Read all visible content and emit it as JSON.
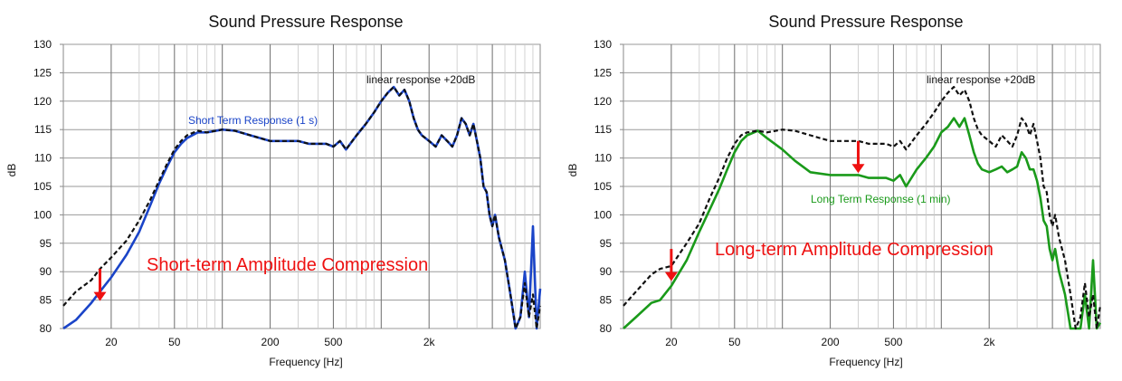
{
  "chart_data": [
    {
      "type": "line",
      "title": "Sound Pressure Response",
      "xlabel": "Frequency [Hz]",
      "ylabel": "dB",
      "xscale": "log",
      "xlim": [
        10,
        10000
      ],
      "ylim": [
        80,
        130
      ],
      "yticks": [
        "80",
        "85",
        "90",
        "95",
        "100",
        "105",
        "110",
        "115",
        "120",
        "125",
        "130"
      ],
      "xticks": [
        {
          "value": 20,
          "label": "20"
        },
        {
          "value": 50,
          "label": "50"
        },
        {
          "value": 200,
          "label": "200"
        },
        {
          "value": 500,
          "label": "500"
        },
        {
          "value": 2000,
          "label": "2k"
        }
      ],
      "grid": true,
      "series": [
        {
          "name": "linear response +20dB",
          "color": "#111111",
          "style": "dashed",
          "x": [
            10,
            12,
            15,
            17,
            20,
            25,
            30,
            35,
            40,
            45,
            50,
            55,
            60,
            70,
            80,
            100,
            120,
            150,
            200,
            250,
            300,
            350,
            400,
            450,
            500,
            550,
            600,
            700,
            800,
            900,
            1000,
            1100,
            1200,
            1300,
            1400,
            1500,
            1600,
            1700,
            1800,
            2000,
            2200,
            2400,
            2600,
            2800,
            3000,
            3200,
            3400,
            3600,
            3800,
            4000,
            4200,
            4400,
            4600,
            4800,
            5000,
            5200,
            5500,
            6000,
            6500,
            7000,
            7500,
            8000,
            8500,
            9000,
            9500,
            10000
          ],
          "y": [
            84,
            86.5,
            88.5,
            90.5,
            92.5,
            95.5,
            99,
            102.5,
            106,
            109,
            111.5,
            113,
            114,
            114.8,
            114.5,
            115,
            114.8,
            114,
            113,
            113,
            113,
            112.5,
            112.5,
            112.5,
            112,
            113,
            111.5,
            114,
            116,
            118,
            120,
            121.5,
            122.5,
            121,
            122,
            120,
            117,
            115,
            114,
            113,
            112,
            114,
            113,
            112,
            114,
            117,
            116,
            114,
            116,
            113,
            110,
            105,
            104,
            100,
            98,
            100,
            96,
            92,
            86,
            80,
            82,
            88,
            82,
            86,
            80,
            84
          ]
        },
        {
          "name": "Short Term Response  (1 s)",
          "color": "#1a44c8",
          "style": "solid",
          "x": [
            10,
            12,
            15,
            17,
            20,
            25,
            30,
            35,
            40,
            45,
            50,
            55,
            60,
            70,
            80,
            100,
            120,
            150,
            200,
            250,
            300,
            350,
            400,
            450,
            500,
            550,
            600,
            700,
            800,
            900,
            1000,
            1100,
            1200,
            1300,
            1400,
            1500,
            1600,
            1700,
            1800,
            2000,
            2200,
            2400,
            2600,
            2800,
            3000,
            3200,
            3400,
            3600,
            3800,
            4000,
            4200,
            4400,
            4600,
            4800,
            5000,
            5200,
            5500,
            6000,
            6500,
            7000,
            7500,
            8000,
            8500,
            9000,
            9500,
            10000
          ],
          "y": [
            79,
            81.5,
            84.5,
            86.5,
            89,
            93,
            97,
            101.5,
            105.5,
            108.5,
            111,
            112.5,
            113.5,
            114.5,
            114.5,
            115,
            114.8,
            114,
            113,
            113,
            113,
            112.5,
            112.5,
            112.5,
            112,
            113,
            111.5,
            114,
            116,
            118,
            120,
            121.5,
            122.5,
            121,
            122,
            120,
            117,
            115,
            114,
            113,
            112,
            114,
            113,
            112,
            114,
            117,
            116,
            114,
            116,
            113,
            110,
            105,
            104,
            100,
            98,
            100,
            96,
            92,
            86,
            80,
            82,
            90,
            82,
            98,
            80,
            87
          ]
        }
      ],
      "annotations": [
        {
          "text": "linear response +20dB",
          "color": "#111111"
        },
        {
          "text": "Short Term Response  (1 s)",
          "color": "#1a44c8"
        },
        {
          "text": "Short-term Amplitude Compression",
          "color": "#ee1111"
        }
      ],
      "arrows": [
        {
          "color": "#ee1111",
          "x": 17,
          "y_from": 90.5,
          "y_to": 85
        }
      ]
    },
    {
      "type": "line",
      "title": "Sound Pressure Response",
      "xlabel": "Frequency [Hz]",
      "ylabel": "dB",
      "xscale": "log",
      "xlim": [
        10,
        10000
      ],
      "ylim": [
        80,
        130
      ],
      "yticks": [
        "80",
        "85",
        "90",
        "95",
        "100",
        "105",
        "110",
        "115",
        "120",
        "125",
        "130"
      ],
      "xticks": [
        {
          "value": 20,
          "label": "20"
        },
        {
          "value": 50,
          "label": "50"
        },
        {
          "value": 200,
          "label": "200"
        },
        {
          "value": 500,
          "label": "500"
        },
        {
          "value": 2000,
          "label": "2k"
        }
      ],
      "grid": true,
      "series": [
        {
          "name": "linear response +20dB",
          "color": "#111111",
          "style": "dashed",
          "x": [
            10,
            12,
            15,
            17,
            20,
            25,
            30,
            35,
            40,
            45,
            50,
            55,
            60,
            70,
            80,
            100,
            120,
            150,
            200,
            250,
            300,
            350,
            400,
            450,
            500,
            550,
            600,
            700,
            800,
            900,
            1000,
            1100,
            1200,
            1300,
            1400,
            1500,
            1600,
            1700,
            1800,
            2000,
            2200,
            2400,
            2600,
            2800,
            3000,
            3200,
            3400,
            3600,
            3800,
            4000,
            4200,
            4400,
            4600,
            4800,
            5000,
            5200,
            5500,
            6000,
            6500,
            7000,
            7500,
            8000,
            8500,
            9000,
            9500,
            10000
          ],
          "y": [
            84,
            86.5,
            89.5,
            90.5,
            91,
            95,
            98.5,
            103,
            106.5,
            110,
            112.5,
            114,
            114.5,
            114.8,
            114.5,
            115,
            114.8,
            114,
            113,
            113,
            113,
            112.5,
            112.5,
            112.5,
            112,
            113,
            111.5,
            114,
            116,
            118,
            120,
            121.5,
            122.5,
            121,
            122,
            120,
            117,
            115,
            114,
            113,
            112,
            114,
            113,
            112,
            114,
            117,
            116,
            114,
            116,
            113,
            110,
            105,
            104,
            100,
            98,
            100,
            96,
            92,
            86,
            80,
            82,
            88,
            82,
            86,
            80,
            84
          ]
        },
        {
          "name": "Long Term Response  (1 min)",
          "color": "#1a9a1a",
          "style": "solid",
          "x": [
            10,
            12,
            15,
            17,
            20,
            25,
            30,
            35,
            40,
            45,
            50,
            55,
            60,
            70,
            80,
            100,
            120,
            150,
            200,
            250,
            300,
            350,
            400,
            450,
            500,
            550,
            600,
            700,
            800,
            900,
            1000,
            1100,
            1200,
            1300,
            1400,
            1500,
            1600,
            1700,
            1800,
            2000,
            2200,
            2400,
            2600,
            2800,
            3000,
            3200,
            3400,
            3600,
            3800,
            4000,
            4200,
            4400,
            4600,
            4800,
            5000,
            5200,
            5500,
            6000,
            6500,
            7000,
            7500,
            8000,
            8500,
            9000,
            9500,
            10000
          ],
          "y": [
            79,
            82,
            84.5,
            85,
            87.5,
            92,
            97,
            101,
            104.5,
            108,
            111,
            113,
            114,
            114.8,
            113.5,
            111.5,
            109.5,
            107.5,
            107,
            107,
            107,
            106.5,
            106.5,
            106.5,
            106,
            107,
            105,
            108,
            110,
            112,
            114.5,
            115.5,
            117,
            115.5,
            117,
            114,
            111,
            109,
            108,
            107.5,
            108,
            108.5,
            107.5,
            108,
            108.5,
            111,
            110,
            108,
            108,
            106,
            103,
            99,
            98,
            94,
            92,
            94,
            90,
            86,
            80,
            80,
            80,
            86,
            80,
            92,
            80,
            81
          ]
        }
      ],
      "annotations": [
        {
          "text": "linear response +20dB",
          "color": "#111111"
        },
        {
          "text": "Long Term Response  (1 min)",
          "color": "#1a9a1a"
        },
        {
          "text": "Long-term Amplitude Compression",
          "color": "#ee1111"
        }
      ],
      "arrows": [
        {
          "color": "#ee1111",
          "x": 20,
          "y_from": 94,
          "y_to": 88.5
        },
        {
          "color": "#ee1111",
          "x": 300,
          "y_from": 113,
          "y_to": 107.5
        }
      ]
    }
  ]
}
